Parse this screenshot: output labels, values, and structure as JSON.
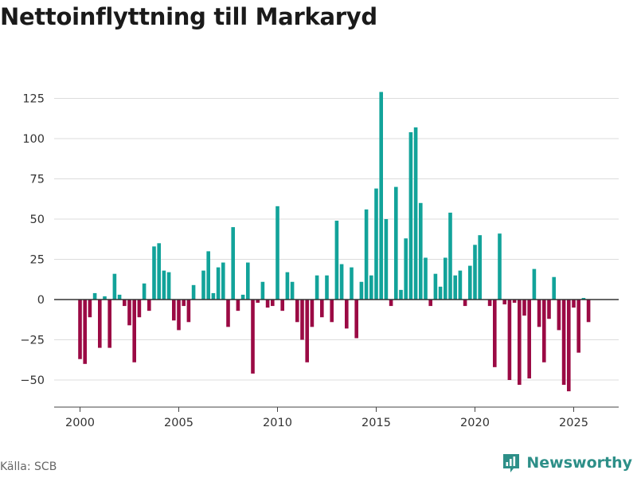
{
  "title": "Nettoinflyttning till Markaryd",
  "source": "Källa: SCB",
  "brand": {
    "name": "Newsworthy",
    "icon": "newsworthy-logo-icon"
  },
  "colors": {
    "positive": "#12a39a",
    "negative": "#9b0a44",
    "brand": "#2d8f88"
  },
  "chart_data": {
    "type": "bar",
    "title": "Nettoinflyttning till Markaryd",
    "frequency": "quarterly",
    "start": "2000-Q1",
    "values": [
      -37,
      -40,
      -11,
      4,
      -30,
      2,
      -30,
      16,
      3,
      -4,
      -16,
      -39,
      -11,
      10,
      -7,
      33,
      35,
      18,
      17,
      -13,
      -19,
      -4,
      -14,
      9,
      0,
      18,
      30,
      4,
      20,
      23,
      -17,
      45,
      -7,
      3,
      23,
      -46,
      -2,
      11,
      -5,
      -4,
      58,
      -7,
      17,
      11,
      -14,
      -25,
      -39,
      -17,
      15,
      -11,
      15,
      -14,
      49,
      22,
      -18,
      20,
      -24,
      11,
      56,
      15,
      69,
      129,
      50,
      -4,
      70,
      6,
      38,
      104,
      107,
      60,
      26,
      -4,
      16,
      8,
      26,
      54,
      15,
      18,
      -4,
      21,
      34,
      40,
      0,
      -4,
      -42,
      41,
      -3,
      -50,
      -2,
      -53,
      -10,
      -49,
      19,
      -17,
      -39,
      -12,
      14,
      -19,
      -53,
      -57,
      -5,
      -33,
      1,
      -14
    ],
    "xticks": [
      "2000",
      "2005",
      "2010",
      "2015",
      "2020",
      "2025"
    ],
    "yticks": [
      "125",
      "100",
      "75",
      "50",
      "25",
      "0",
      "−25",
      "−50"
    ],
    "ylim": [
      -62,
      135
    ],
    "xlabel": "",
    "ylabel": "",
    "grid": true,
    "legend": "none"
  }
}
